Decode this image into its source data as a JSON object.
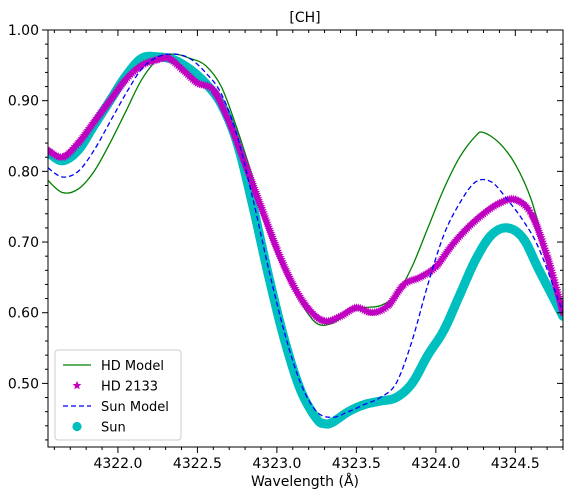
{
  "chart_data": {
    "type": "line",
    "title": "[CH]",
    "xlabel": "Wavelength (Å)",
    "ylabel": "",
    "xlim": [
      4321.56,
      4324.8
    ],
    "ylim": [
      0.41,
      1.0
    ],
    "xticks": [
      4322.0,
      4322.5,
      4323.0,
      4323.5,
      4324.0,
      4324.5
    ],
    "xtick_labels": [
      "4322.0",
      "4322.5",
      "4323.0",
      "4323.5",
      "4324.0",
      "4324.5"
    ],
    "yticks": [
      0.5,
      0.6,
      0.7,
      0.8,
      0.9,
      1.0
    ],
    "ytick_labels": [
      "0.50",
      "0.60",
      "0.70",
      "0.80",
      "0.90",
      "1.00"
    ],
    "grid": false,
    "legend_position": "lower-left",
    "series": [
      {
        "name": "HD Model",
        "style": "solid-line",
        "color": "#008000",
        "x": [
          4321.56,
          4321.65,
          4321.75,
          4321.85,
          4321.95,
          4322.05,
          4322.15,
          4322.25,
          4322.35,
          4322.45,
          4322.55,
          4322.65,
          4322.75,
          4322.85,
          4322.95,
          4323.05,
          4323.15,
          4323.25,
          4323.35,
          4323.45,
          4323.55,
          4323.65,
          4323.75,
          4323.85,
          4323.95,
          4324.05,
          4324.15,
          4324.25,
          4324.3,
          4324.4,
          4324.5,
          4324.6,
          4324.7,
          4324.8
        ],
        "y": [
          0.787,
          0.77,
          0.775,
          0.8,
          0.84,
          0.885,
          0.93,
          0.958,
          0.966,
          0.96,
          0.95,
          0.92,
          0.86,
          0.79,
          0.72,
          0.66,
          0.615,
          0.585,
          0.585,
          0.6,
          0.607,
          0.61,
          0.625,
          0.665,
          0.72,
          0.775,
          0.82,
          0.85,
          0.855,
          0.84,
          0.81,
          0.76,
          0.68,
          0.595
        ]
      },
      {
        "name": "HD 2133",
        "style": "star-markers",
        "color": "#c000c0",
        "x": [
          4321.56,
          4321.65,
          4321.75,
          4321.85,
          4321.95,
          4322.05,
          4322.15,
          4322.25,
          4322.32,
          4322.4,
          4322.5,
          4322.6,
          4322.7,
          4322.8,
          4322.9,
          4323.0,
          4323.1,
          4323.2,
          4323.3,
          4323.4,
          4323.5,
          4323.6,
          4323.7,
          4323.8,
          4323.9,
          4324.0,
          4324.1,
          4324.2,
          4324.3,
          4324.4,
          4324.5,
          4324.6,
          4324.7,
          4324.8
        ],
        "y": [
          0.83,
          0.82,
          0.84,
          0.87,
          0.9,
          0.93,
          0.95,
          0.958,
          0.96,
          0.945,
          0.925,
          0.915,
          0.87,
          0.81,
          0.75,
          0.69,
          0.64,
          0.605,
          0.588,
          0.595,
          0.607,
          0.6,
          0.61,
          0.64,
          0.65,
          0.665,
          0.695,
          0.72,
          0.74,
          0.755,
          0.76,
          0.74,
          0.68,
          0.6
        ]
      },
      {
        "name": "Sun Model",
        "style": "dashed-line",
        "color": "#0000ff",
        "x": [
          4321.56,
          4321.65,
          4321.75,
          4321.85,
          4321.95,
          4322.05,
          4322.15,
          4322.25,
          4322.35,
          4322.45,
          4322.55,
          4322.65,
          4322.75,
          4322.85,
          4322.95,
          4323.05,
          4323.15,
          4323.25,
          4323.35,
          4323.45,
          4323.55,
          4323.65,
          4323.75,
          4323.85,
          4323.95,
          4324.05,
          4324.15,
          4324.25,
          4324.35,
          4324.45,
          4324.55,
          4324.65,
          4324.8
        ],
        "y": [
          0.805,
          0.792,
          0.8,
          0.83,
          0.87,
          0.91,
          0.945,
          0.962,
          0.966,
          0.96,
          0.94,
          0.91,
          0.85,
          0.76,
          0.66,
          0.57,
          0.5,
          0.46,
          0.452,
          0.46,
          0.47,
          0.48,
          0.5,
          0.56,
          0.64,
          0.71,
          0.755,
          0.785,
          0.785,
          0.76,
          0.73,
          0.69,
          0.6
        ]
      },
      {
        "name": "Sun",
        "style": "circle-markers",
        "color": "#00bfbf",
        "x": [
          4321.56,
          4321.65,
          4321.75,
          4321.85,
          4321.95,
          4322.05,
          4322.15,
          4322.25,
          4322.35,
          4322.45,
          4322.55,
          4322.65,
          4322.75,
          4322.85,
          4322.95,
          4323.05,
          4323.15,
          4323.25,
          4323.3,
          4323.35,
          4323.45,
          4323.55,
          4323.65,
          4323.75,
          4323.85,
          4323.95,
          4324.05,
          4324.15,
          4324.25,
          4324.35,
          4324.45,
          4324.55,
          4324.65,
          4324.8
        ],
        "y": [
          0.827,
          0.815,
          0.83,
          0.865,
          0.9,
          0.935,
          0.96,
          0.962,
          0.958,
          0.945,
          0.925,
          0.895,
          0.84,
          0.75,
          0.65,
          0.56,
          0.49,
          0.45,
          0.443,
          0.445,
          0.46,
          0.47,
          0.475,
          0.48,
          0.5,
          0.54,
          0.575,
          0.625,
          0.675,
          0.71,
          0.72,
          0.705,
          0.66,
          0.595
        ]
      }
    ]
  }
}
